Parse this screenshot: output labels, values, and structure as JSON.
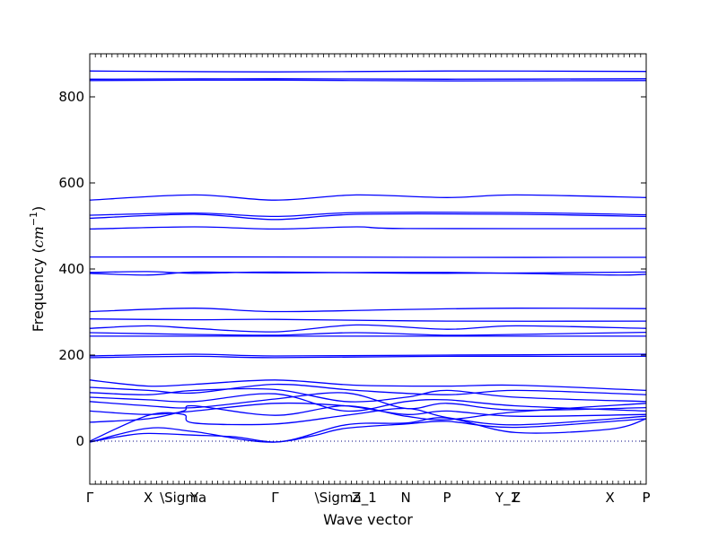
{
  "chart_data": {
    "type": "line",
    "title": "",
    "xlabel": "Wave vector",
    "ylabel_main": "Frequency (",
    "ylabel_unit_base": "cm",
    "ylabel_unit_exp": "−1",
    "ylabel_close": ")",
    "ylim": [
      -100,
      900
    ],
    "yticks": [
      0,
      200,
      400,
      600,
      800
    ],
    "xlim": [
      0,
      1
    ],
    "grid": false,
    "legend": "none",
    "zero_line": 0,
    "line_color": "#0000ff",
    "zero_line_color": "#000080",
    "xticks": [
      {
        "label": "Γ",
        "pos": 0.0
      },
      {
        "label": "X",
        "pos": 0.105
      },
      {
        "label": "\\Sigma",
        "pos": 0.168
      },
      {
        "label": "Y",
        "pos": 0.188
      },
      {
        "label": "Γ",
        "pos": 0.333
      },
      {
        "label": "\\Sigma_1",
        "pos": 0.46
      },
      {
        "label": "Z",
        "pos": 0.479
      },
      {
        "label": "N",
        "pos": 0.568
      },
      {
        "label": "P",
        "pos": 0.642
      },
      {
        "label": "Y_1",
        "pos": 0.75
      },
      {
        "label": "Z",
        "pos": 0.766
      },
      {
        "label": "X",
        "pos": 0.935
      },
      {
        "label": "P",
        "pos": 1.0
      }
    ],
    "series": [
      {
        "x": [
          0,
          0.333,
          0.642,
          1
        ],
        "values": [
          860,
          858,
          860,
          859
        ]
      },
      {
        "x": [
          0,
          0.333,
          0.642,
          1
        ],
        "values": [
          841,
          842,
          841,
          842
        ]
      },
      {
        "x": [
          0,
          0.333,
          0.642,
          1
        ],
        "values": [
          838,
          839,
          837,
          838
        ]
      },
      {
        "x": [
          0,
          0.188,
          0.333,
          0.479,
          0.642,
          0.766,
          1
        ],
        "values": [
          560,
          572,
          560,
          572,
          566,
          572,
          566
        ]
      },
      {
        "x": [
          0,
          0.188,
          0.333,
          0.479,
          0.766,
          1
        ],
        "values": [
          525,
          530,
          522,
          531,
          531,
          526
        ]
      },
      {
        "x": [
          0,
          0.188,
          0.333,
          0.479,
          0.766,
          1
        ],
        "values": [
          518,
          527,
          515,
          527,
          527,
          522
        ]
      },
      {
        "x": [
          0,
          0.188,
          0.333,
          0.479,
          0.568,
          1
        ],
        "values": [
          493,
          498,
          493,
          498,
          494,
          494
        ]
      },
      {
        "x": [
          0,
          0.333,
          0.642,
          1
        ],
        "values": [
          428,
          428,
          427,
          427
        ]
      },
      {
        "x": [
          0,
          0.105,
          0.188,
          0.333,
          0.642,
          1
        ],
        "values": [
          392,
          394,
          390,
          393,
          390,
          393
        ]
      },
      {
        "x": [
          0,
          0.105,
          0.188,
          0.333,
          0.642,
          0.935,
          1
        ],
        "values": [
          390,
          386,
          393,
          391,
          392,
          386,
          388
        ]
      },
      {
        "x": [
          0,
          0.188,
          0.333,
          0.568,
          0.766,
          1
        ],
        "values": [
          301,
          309,
          301,
          306,
          309,
          308
        ]
      },
      {
        "x": [
          0,
          0.188,
          0.333,
          0.642,
          1
        ],
        "values": [
          284,
          282,
          283,
          279,
          279
        ]
      },
      {
        "x": [
          0,
          0.105,
          0.188,
          0.333,
          0.479,
          0.642,
          0.766,
          1
        ],
        "values": [
          262,
          268,
          262,
          254,
          270,
          260,
          268,
          262
        ]
      },
      {
        "x": [
          0,
          0.188,
          0.333,
          0.479,
          0.642,
          0.766,
          1
        ],
        "values": [
          252,
          248,
          246,
          252,
          246,
          248,
          253
        ]
      },
      {
        "x": [
          0,
          0.168,
          0.333,
          0.642,
          1
        ],
        "values": [
          244,
          244,
          244,
          244,
          244
        ]
      },
      {
        "x": [
          0,
          0.188,
          0.333,
          0.642,
          1
        ],
        "values": [
          198,
          202,
          198,
          200,
          202
        ]
      },
      {
        "x": [
          0,
          0.188,
          0.333,
          0.642,
          1
        ],
        "values": [
          194,
          197,
          194,
          197,
          197
        ]
      },
      {
        "x": [
          0,
          0.105,
          0.188,
          0.333,
          0.479,
          0.642,
          0.766,
          1
        ],
        "values": [
          142,
          128,
          132,
          142,
          130,
          128,
          130,
          118
        ]
      },
      {
        "x": [
          0,
          0.105,
          0.188,
          0.333,
          0.479,
          0.642,
          0.766,
          1
        ],
        "values": [
          125,
          118,
          112,
          132,
          118,
          108,
          118,
          108
        ]
      },
      {
        "x": [
          0,
          0.105,
          0.188,
          0.333,
          0.46,
          0.568,
          0.642,
          0.766,
          1
        ],
        "values": [
          113,
          108,
          118,
          120,
          92,
          102,
          118,
          102,
          92
        ]
      },
      {
        "x": [
          0,
          0.105,
          0.188,
          0.333,
          0.46,
          0.568,
          0.642,
          0.766,
          1
        ],
        "values": [
          102,
          96,
          92,
          110,
          70,
          92,
          96,
          82,
          70
        ]
      },
      {
        "x": [
          0,
          0.105,
          0.188,
          0.333,
          0.46,
          0.568,
          0.642,
          0.766,
          1
        ],
        "values": [
          92,
          82,
          78,
          98,
          112,
          76,
          88,
          72,
          78
        ]
      },
      {
        "x": [
          0,
          0.105,
          0.188,
          0.333,
          0.46,
          0.568,
          0.642,
          0.766,
          1
        ],
        "values": [
          70,
          62,
          70,
          88,
          82,
          62,
          70,
          58,
          62
        ]
      },
      {
        "x": [
          0,
          0.105,
          0.168,
          0.188,
          0.333,
          0.46,
          0.568,
          0.642,
          0.766,
          1
        ],
        "values": [
          44,
          52,
          70,
          82,
          60,
          82,
          58,
          50,
          68,
          88
        ]
      },
      {
        "x": [
          0,
          0.105,
          0.168,
          0.188,
          0.333,
          0.46,
          0.568,
          0.642,
          0.766,
          1
        ],
        "values": [
          0,
          60,
          62,
          42,
          40,
          60,
          76,
          55,
          38,
          58
        ]
      },
      {
        "x": [
          0,
          0.105,
          0.188,
          0.333,
          0.46,
          0.568,
          0.642,
          0.766,
          0.935,
          1
        ],
        "values": [
          -2,
          30,
          22,
          -2,
          38,
          42,
          54,
          20,
          28,
          52
        ]
      },
      {
        "x": [
          0,
          0.06,
          0.105,
          0.188,
          0.26,
          0.333,
          0.4,
          0.46,
          0.568,
          0.642,
          0.766,
          1
        ],
        "values": [
          -2,
          12,
          18,
          14,
          10,
          -2,
          12,
          30,
          40,
          46,
          32,
          52
        ]
      }
    ]
  }
}
